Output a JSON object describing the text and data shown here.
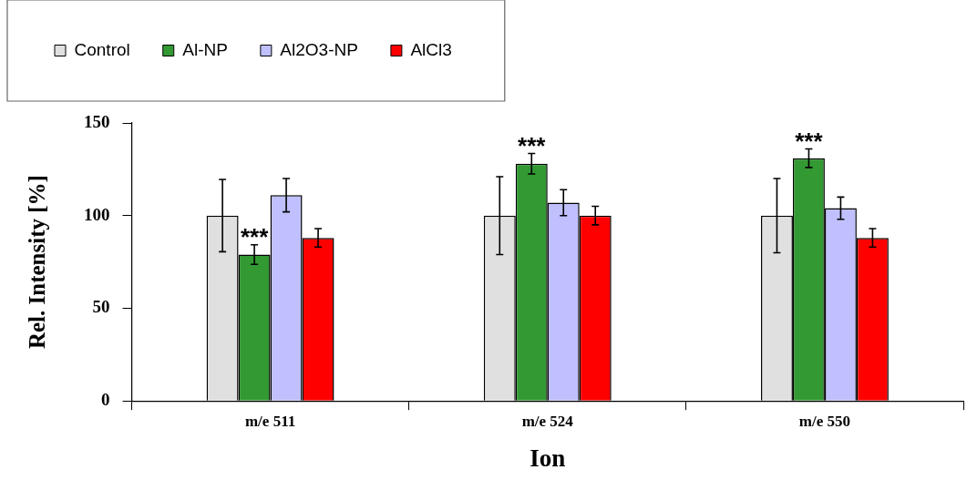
{
  "chart_data": {
    "type": "bar",
    "xlabel": "Ion",
    "ylabel": "Rel. Intensity [%]",
    "categories": [
      "m/e 511",
      "m/e 524",
      "m/e 550"
    ],
    "series": [
      {
        "name": "Control",
        "color": "#e0e0e0",
        "values": [
          100,
          100,
          100
        ],
        "errors": [
          19.5,
          21,
          20
        ]
      },
      {
        "name": "Al-NP",
        "color": "#339933",
        "values": [
          79,
          128,
          131
        ],
        "errors": [
          5.3,
          5.5,
          5
        ]
      },
      {
        "name": "Al2O3-NP",
        "color": "#c0c0ff",
        "values": [
          111,
          107,
          104
        ],
        "errors": [
          9,
          7,
          6
        ]
      },
      {
        "name": "AlCl3",
        "color": "#ff0000",
        "values": [
          88,
          100,
          88
        ],
        "errors": [
          5,
          5,
          5
        ]
      }
    ],
    "ylim": [
      0,
      150
    ],
    "yticks": [
      0,
      50,
      100,
      150
    ],
    "grid": false,
    "legend": "top left",
    "annotations": [
      {
        "text": "***",
        "x": "m/e 511",
        "y": 79
      },
      {
        "text": "***",
        "x": "m/e 524",
        "y": 128
      },
      {
        "text": "***",
        "x": "m/e 550",
        "y": 131
      }
    ]
  }
}
